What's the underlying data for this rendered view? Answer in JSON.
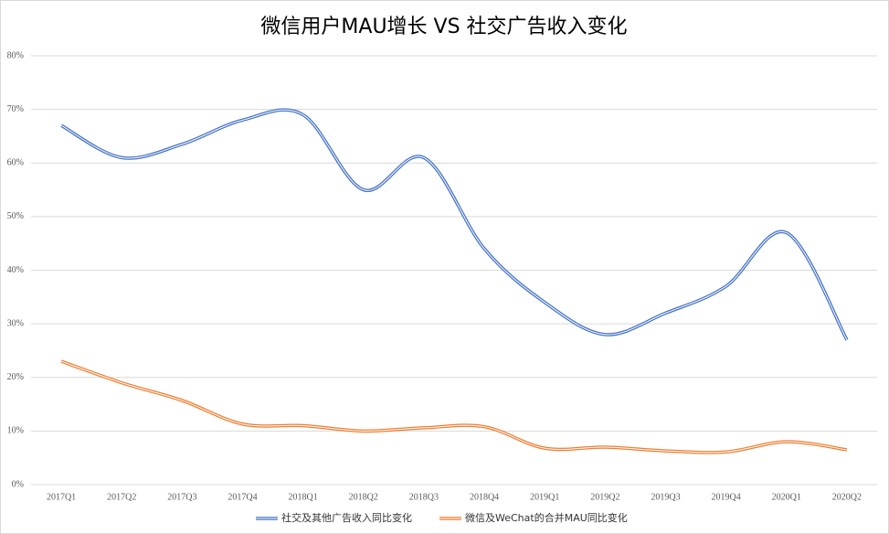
{
  "chart_data": {
    "type": "line",
    "title": "微信用户MAU增长 VS 社交广告收入变化",
    "categories": [
      "2017Q1",
      "2017Q2",
      "2017Q3",
      "2017Q4",
      "2018Q1",
      "2018Q2",
      "2018Q3",
      "2018Q4",
      "2019Q1",
      "2019Q2",
      "2019Q3",
      "2019Q4",
      "2020Q1",
      "2020Q2"
    ],
    "series": [
      {
        "name": "社交及其他广告收入同比变化",
        "color": "#4472c4",
        "values": [
          67,
          61,
          63.5,
          68,
          69,
          55,
          61,
          44,
          34,
          28,
          32,
          37,
          47,
          27
        ]
      },
      {
        "name": "微信及WeChat的合并MAU同比变化",
        "color": "#ed7d31",
        "values": [
          23,
          19,
          15.7,
          11.3,
          11,
          10,
          10.6,
          10.8,
          6.8,
          7,
          6.3,
          6.1,
          8,
          6.5
        ]
      }
    ],
    "ylim": [
      0,
      80
    ],
    "yticks": [
      {
        "value": 0,
        "label": "0%"
      },
      {
        "value": 10,
        "label": "10%"
      },
      {
        "value": 20,
        "label": "20%"
      },
      {
        "value": 30,
        "label": "30%"
      },
      {
        "value": 40,
        "label": "40%"
      },
      {
        "value": 50,
        "label": "50%"
      },
      {
        "value": 60,
        "label": "60%"
      },
      {
        "value": 70,
        "label": "70%"
      },
      {
        "value": 80,
        "label": "80%"
      }
    ],
    "grid": true,
    "smooth": true,
    "legend": "bottom"
  }
}
